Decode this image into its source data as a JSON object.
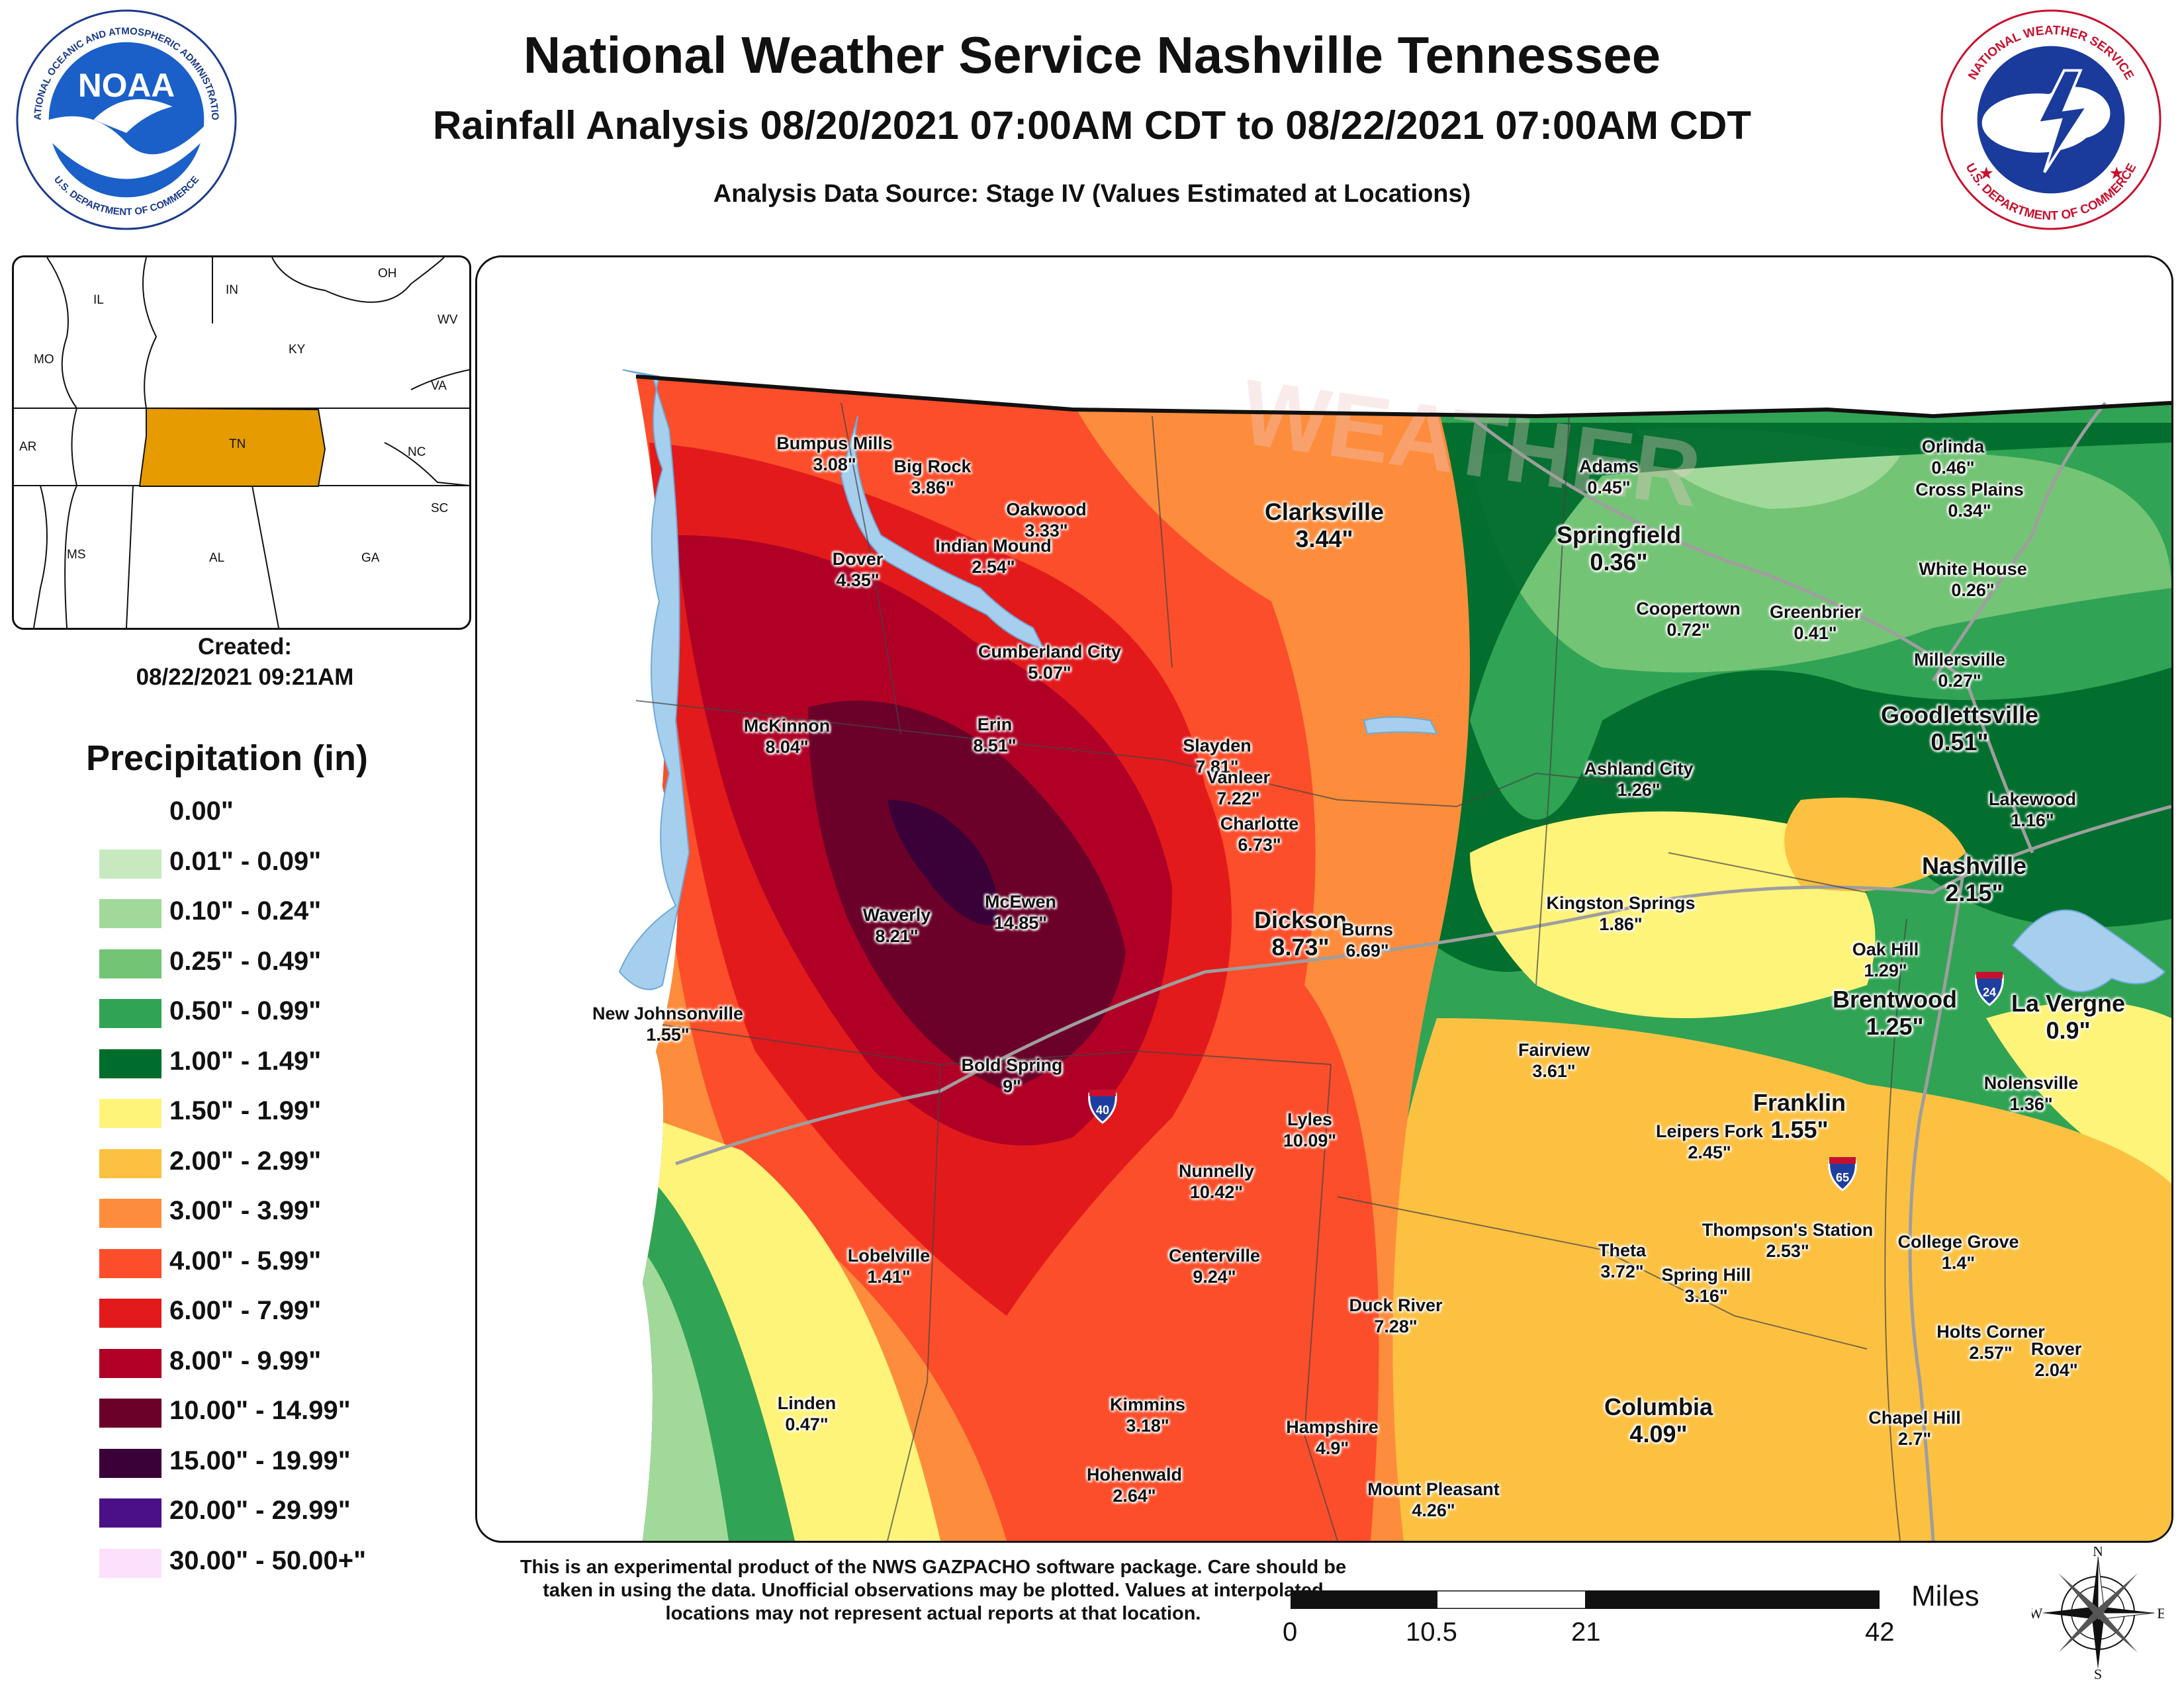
{
  "header": {
    "title": "National Weather Service Nashville Tennessee",
    "subtitle": "Rainfall Analysis 08/20/2021 07:00AM CDT to 08/22/2021 07:00AM CDT",
    "source": "Analysis Data Source: Stage IV (Values Estimated at Locations)"
  },
  "logos": {
    "noaa": {
      "main": "NOAA",
      "ring_top": "NATIONAL OCEANIC AND ATMOSPHERIC ADMINISTRATION",
      "ring_bottom": "U.S. DEPARTMENT OF COMMERCE"
    },
    "nws": {
      "ring_top": "NATIONAL WEATHER SERVICE",
      "ring_bottom": "U.S. DEPARTMENT OF COMMERCE"
    }
  },
  "inset": {
    "states": [
      "IL",
      "IN",
      "OH",
      "MO",
      "KY",
      "WV",
      "VA",
      "AR",
      "TN",
      "NC",
      "SC",
      "MS",
      "AL",
      "GA"
    ],
    "highlight_color": "#e69b00"
  },
  "created": {
    "label": "Created:",
    "timestamp": "08/22/2021 09:21AM"
  },
  "legend": {
    "title": "Precipitation (in)",
    "items": [
      {
        "label": "0.00\"",
        "color": "#ffffff"
      },
      {
        "label": "0.01\" - 0.09\"",
        "color": "#c7e9c0"
      },
      {
        "label": "0.10\" - 0.24\"",
        "color": "#a1d99b"
      },
      {
        "label": "0.25\" - 0.49\"",
        "color": "#74c476"
      },
      {
        "label": "0.50\" - 0.99\"",
        "color": "#31a354"
      },
      {
        "label": "1.00\" - 1.49\"",
        "color": "#006d2c"
      },
      {
        "label": "1.50\" - 1.99\"",
        "color": "#fff47a"
      },
      {
        "label": "2.00\" - 2.99\"",
        "color": "#fdc142"
      },
      {
        "label": "3.00\" - 3.99\"",
        "color": "#fd8d3c"
      },
      {
        "label": "4.00\" - 5.99\"",
        "color": "#fc4e2a"
      },
      {
        "label": "6.00\" - 7.99\"",
        "color": "#e31a1c"
      },
      {
        "label": "8.00\" - 9.99\"",
        "color": "#b00026"
      },
      {
        "label": "10.00\" - 14.99\"",
        "color": "#6b0028"
      },
      {
        "label": "15.00\" - 19.99\"",
        "color": "#3a0038"
      },
      {
        "label": "20.00\" - 29.99\"",
        "color": "#4b0f86"
      },
      {
        "label": "30.00\" - 50.00+\"",
        "color": "#fde0fc"
      }
    ]
  },
  "places": [
    {
      "name": "Bumpus Mills",
      "value": "3.08\""
    },
    {
      "name": "Big Rock",
      "value": "3.86\""
    },
    {
      "name": "Oakwood",
      "value": "3.33\""
    },
    {
      "name": "Clarksville",
      "value": "3.44\"",
      "major": true
    },
    {
      "name": "Adams",
      "value": "0.45\""
    },
    {
      "name": "Orlinda",
      "value": "0.46\""
    },
    {
      "name": "Cross Plains",
      "value": "0.34\""
    },
    {
      "name": "Springfield",
      "value": "0.36\"",
      "major": true
    },
    {
      "name": "White House",
      "value": "0.26\""
    },
    {
      "name": "Indian Mound",
      "value": "2.54\""
    },
    {
      "name": "Dover",
      "value": "4.35\""
    },
    {
      "name": "Coopertown",
      "value": "0.72\""
    },
    {
      "name": "Greenbrier",
      "value": "0.41\""
    },
    {
      "name": "Millersville",
      "value": "0.27\""
    },
    {
      "name": "Cumberland City",
      "value": "5.07\""
    },
    {
      "name": "Goodlettsville",
      "value": "0.51\"",
      "major": true
    },
    {
      "name": "McKinnon",
      "value": "8.04\""
    },
    {
      "name": "Erin",
      "value": "8.51\""
    },
    {
      "name": "Slayden",
      "value": "7.81\""
    },
    {
      "name": "Ashland City",
      "value": "1.26\""
    },
    {
      "name": "Vanleer",
      "value": "7.22\""
    },
    {
      "name": "Lakewood",
      "value": "1.16\""
    },
    {
      "name": "Charlotte",
      "value": "6.73\""
    },
    {
      "name": "Nashville",
      "value": "2.15\"",
      "major": true
    },
    {
      "name": "McEwen",
      "value": "14.85\""
    },
    {
      "name": "Kingston Springs",
      "value": "1.86\""
    },
    {
      "name": "Waverly",
      "value": "8.21\""
    },
    {
      "name": "Dickson",
      "value": "8.73\"",
      "major": true
    },
    {
      "name": "Burns",
      "value": "6.69\""
    },
    {
      "name": "Oak Hill",
      "value": "1.29\""
    },
    {
      "name": "Brentwood",
      "value": "1.25\"",
      "major": true
    },
    {
      "name": "La Vergne",
      "value": "0.9\"",
      "major": true
    },
    {
      "name": "New Johnsonville",
      "value": "1.55\""
    },
    {
      "name": "Fairview",
      "value": "3.61\""
    },
    {
      "name": "Bold Spring",
      "value": "9\""
    },
    {
      "name": "Nolensville",
      "value": "1.36\""
    },
    {
      "name": "Franklin",
      "value": "1.55\"",
      "major": true
    },
    {
      "name": "Lyles",
      "value": "10.09\""
    },
    {
      "name": "Leipers Fork",
      "value": "2.45\""
    },
    {
      "name": "Nunnelly",
      "value": "10.42\""
    },
    {
      "name": "Thompson's Station",
      "value": "2.53\""
    },
    {
      "name": "Theta",
      "value": "3.72\""
    },
    {
      "name": "College Grove",
      "value": "1.4\""
    },
    {
      "name": "Lobelville",
      "value": "1.41\""
    },
    {
      "name": "Centerville",
      "value": "9.24\""
    },
    {
      "name": "Spring Hill",
      "value": "3.16\""
    },
    {
      "name": "Duck River",
      "value": "7.28\""
    },
    {
      "name": "Holts Corner",
      "value": "2.57\""
    },
    {
      "name": "Rover",
      "value": "2.04\""
    },
    {
      "name": "Kimmins",
      "value": "3.18\""
    },
    {
      "name": "Columbia",
      "value": "4.09\"",
      "major": true
    },
    {
      "name": "Linden",
      "value": "0.47\""
    },
    {
      "name": "Hampshire",
      "value": "4.9\""
    },
    {
      "name": "Chapel Hill",
      "value": "2.7\""
    },
    {
      "name": "Hohenwald",
      "value": "2.64\""
    },
    {
      "name": "Mount Pleasant",
      "value": "4.26\""
    }
  ],
  "shields": [
    {
      "number": "40",
      "label": "I-40"
    },
    {
      "number": "24",
      "label": "I-24"
    },
    {
      "number": "65",
      "label": "I-65"
    }
  ],
  "disclaimer": "This is an experimental product of the NWS GAZPACHO software package. Care should be taken in using the data. Unofficial observations may be plotted. Values at interpolated locations may not represent actual reports at that location.",
  "scale": {
    "unit": "Miles",
    "ticks": [
      "0",
      "10.5",
      "21",
      "42"
    ]
  },
  "compass": {
    "n": "N",
    "s": "S",
    "e": "E",
    "w": "W"
  }
}
